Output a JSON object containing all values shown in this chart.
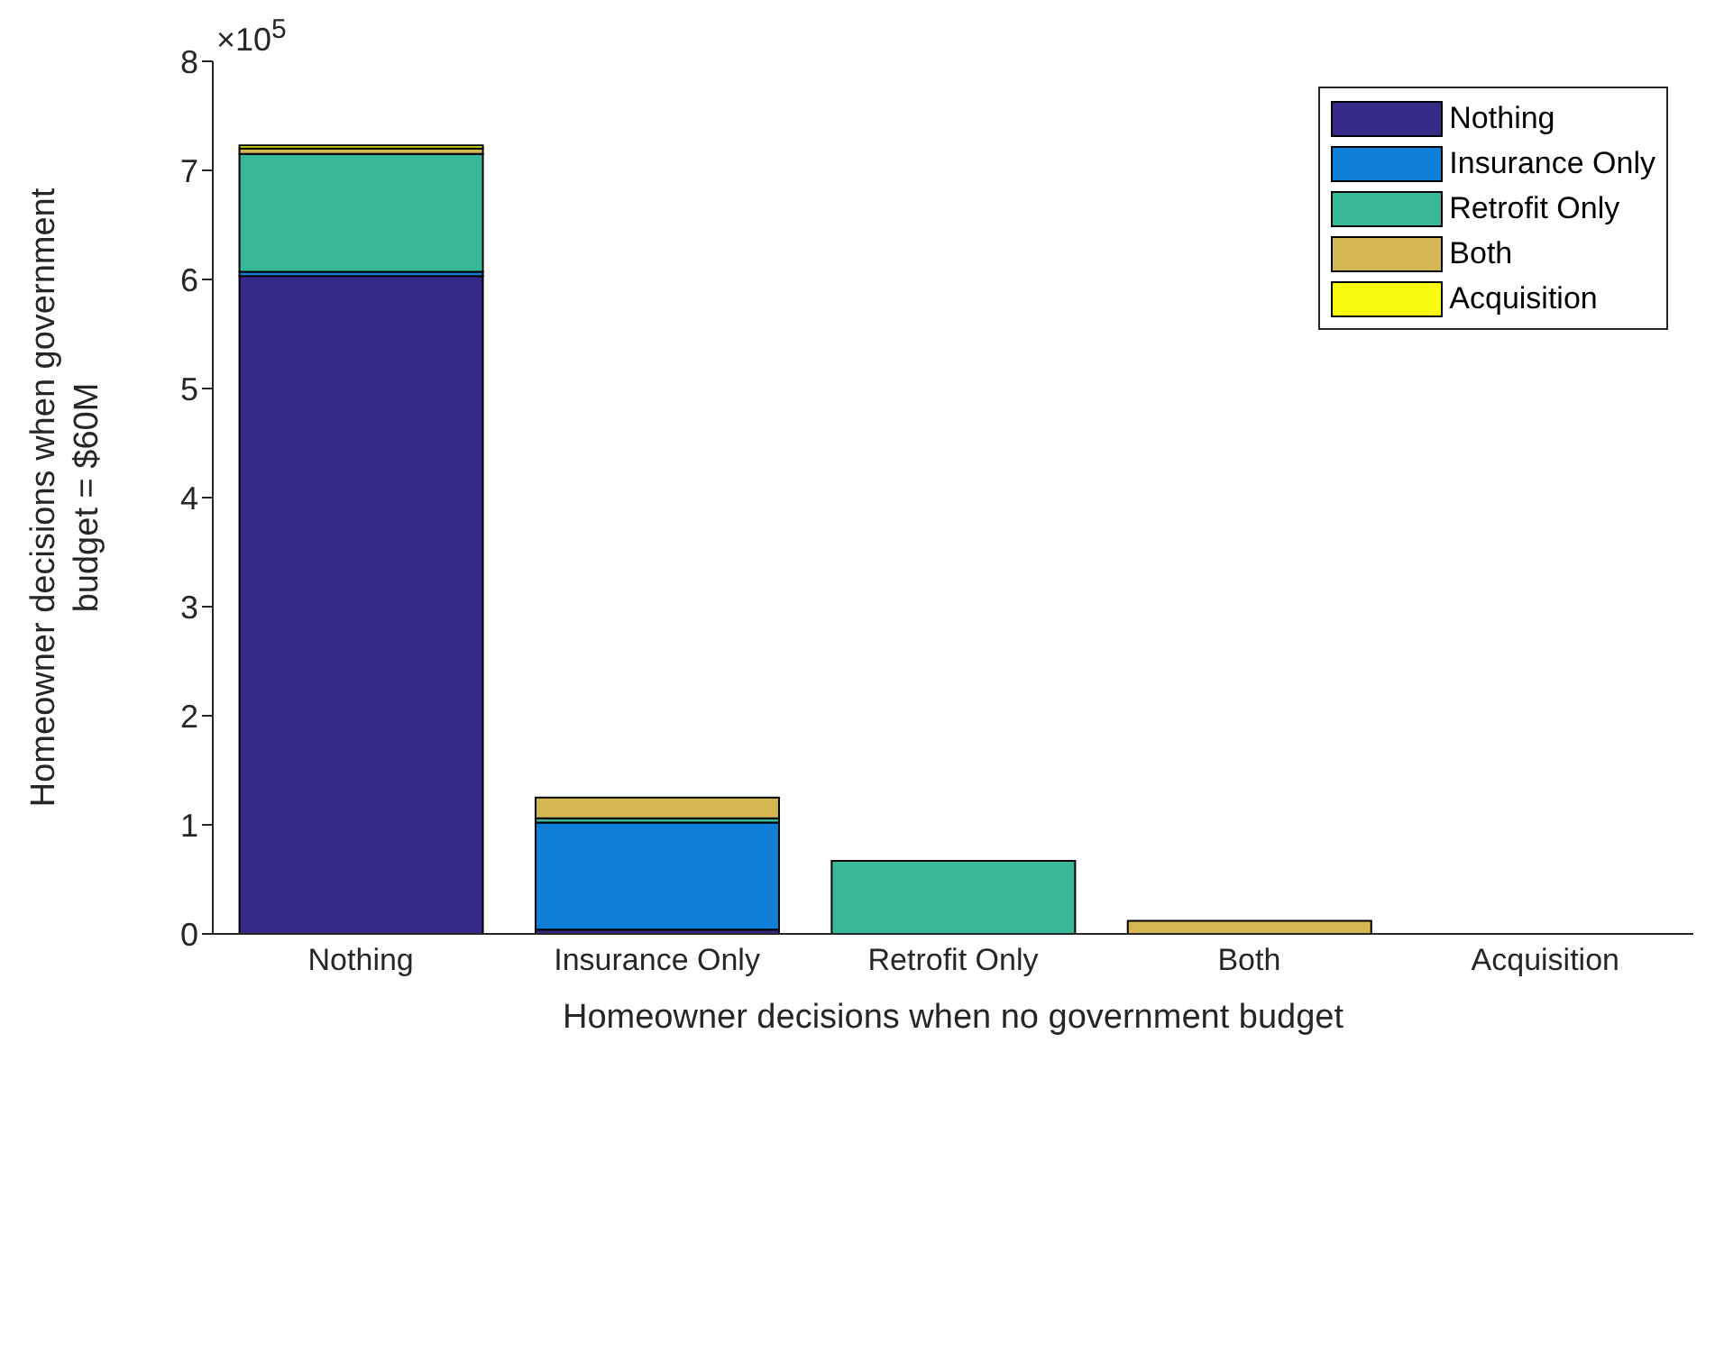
{
  "chart_data": {
    "type": "bar",
    "stacked": true,
    "xlabel": "Homeowner decisions when no government budget",
    "ylabel": "Homeowner decisions when government budget = $60M",
    "categories": [
      "Nothing",
      "Insurance Only",
      "Retrofit Only",
      "Both",
      "Acquisition"
    ],
    "series": [
      {
        "name": "Nothing",
        "color": "#352a87",
        "values": [
          6.03,
          0.04,
          0,
          0,
          0
        ]
      },
      {
        "name": "Insurance Only",
        "color": "#0f7fd8",
        "values": [
          0.04,
          0.98,
          0,
          0,
          0
        ]
      },
      {
        "name": "Retrofit Only",
        "color": "#38b899",
        "values": [
          1.08,
          0.04,
          0.67,
          0,
          0
        ]
      },
      {
        "name": "Both",
        "color": "#d4b752",
        "values": [
          0.05,
          0.19,
          0,
          0.12,
          0
        ]
      },
      {
        "name": "Acquisition",
        "color": "#f9fb0e",
        "values": [
          0.03,
          0,
          0,
          0,
          0
        ]
      }
    ],
    "ylim": [
      0,
      8
    ],
    "yticks": [
      0,
      1,
      2,
      3,
      4,
      5,
      6,
      7,
      8
    ],
    "annotations": [
      "×10$^{5}$"
    ],
    "grid": false,
    "legend": "top right"
  }
}
